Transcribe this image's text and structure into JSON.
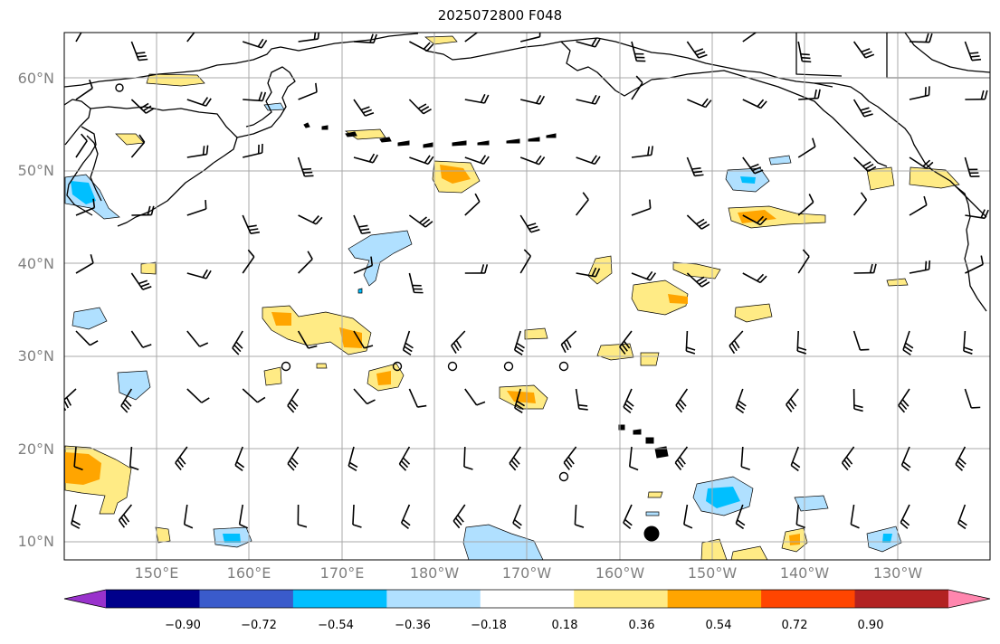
{
  "title": "2025072800 F048",
  "lat_labels": [
    "60°N",
    "50°N",
    "40°N",
    "30°N",
    "20°N",
    "10°N"
  ],
  "lon_labels": [
    "150°E",
    "160°E",
    "170°E",
    "180°W",
    "170°W",
    "160°W",
    "150°W",
    "140°W",
    "130°W"
  ],
  "colorbar": {
    "tick_labels": [
      "−0.90",
      "−0.72",
      "−0.54",
      "−0.36",
      "−0.18",
      "0.18",
      "0.36",
      "0.54",
      "0.72",
      "0.90"
    ],
    "colors": [
      "#9932CC",
      "#00008B",
      "#3A5BCB",
      "#00BFFF",
      "#B0E0FF",
      "#FFFFFF",
      "#FFEB85",
      "#FFA500",
      "#FF4500",
      "#B22222",
      "#FF86AE"
    ]
  },
  "colors": {
    "gridline": "#A9A9A9",
    "coastline": "#000000",
    "station_marker": "#000000"
  },
  "icons": {
    "wind": "wind-barb-icon",
    "calm": "calm-wind-circle-icon",
    "station": "station-dot-icon"
  }
}
